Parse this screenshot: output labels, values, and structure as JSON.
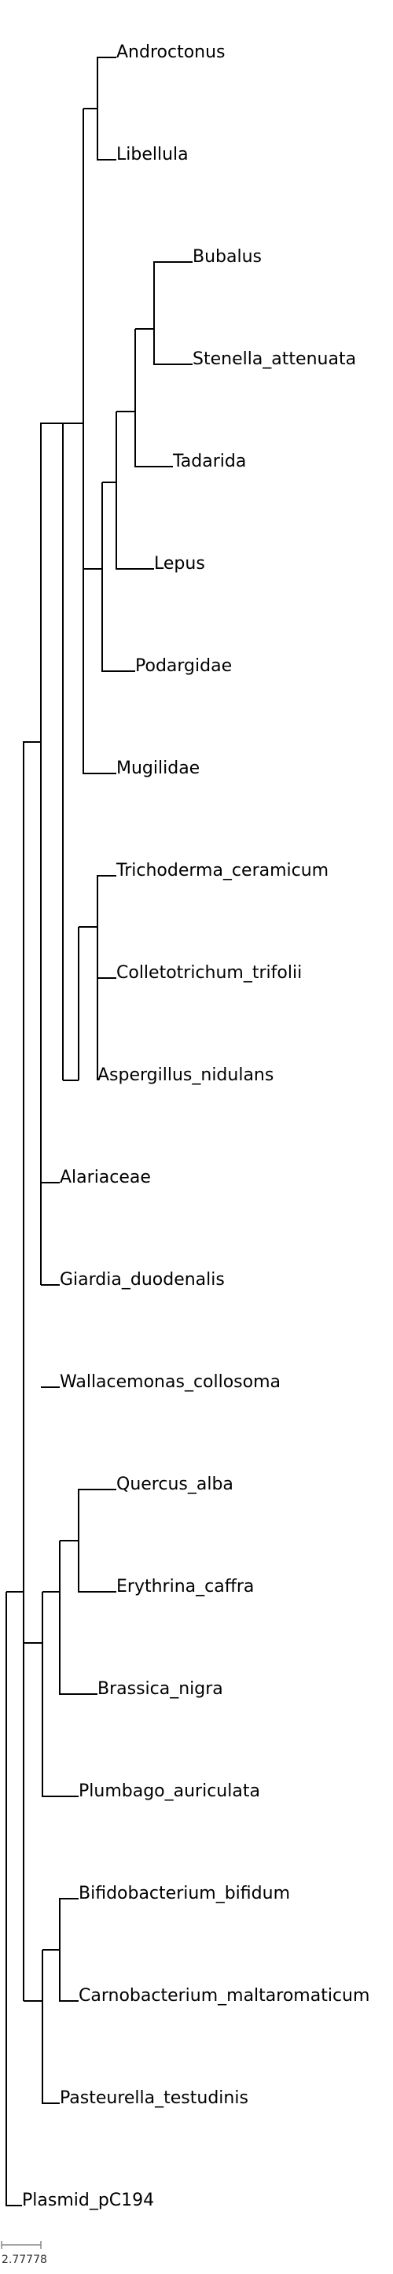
{
  "tree": {
    "taxa": [
      "Androctonus",
      "Libellula",
      "Bubalus",
      "Stenella_attenuata",
      "Tadarida",
      "Lepus",
      "Podargidae",
      "Mugilidae",
      "Trichoderma_ceramicum",
      "Colletotrichum_trifolii",
      "Aspergillus_nidulans",
      "Alariaceae",
      "Giardia_duodenalis",
      "Wallacemonas_collosoma",
      "Quercus_alba",
      "Erythrina_caffra",
      "Brassica_nigra",
      "Plumbago_auriculata",
      "Bifidobacterium_bifidum",
      "Carnobacterium_maltaromaticum",
      "Pasteurella_testudinis",
      "Plasmid_pC194"
    ]
  },
  "scale": {
    "label": "2.77778"
  }
}
